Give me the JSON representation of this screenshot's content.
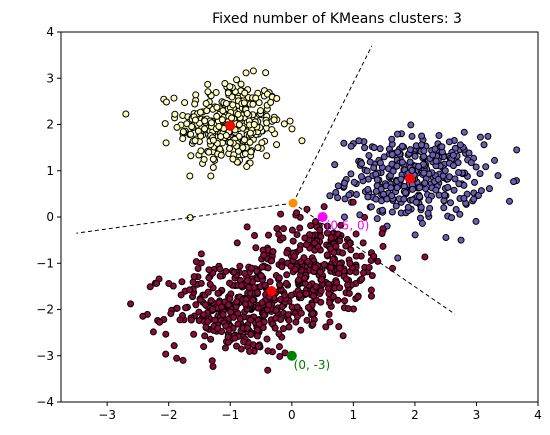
{
  "chart_data": {
    "type": "scatter",
    "title": "Fixed number of KMeans clusters: 3",
    "xlabel": "",
    "ylabel": "",
    "xlim": [
      -3.75,
      4
    ],
    "ylim": [
      -4,
      4
    ],
    "xticks": [
      -3,
      -2,
      -1,
      0,
      1,
      2,
      3,
      4
    ],
    "yticks": [
      -4,
      -3,
      -2,
      -1,
      0,
      1,
      2,
      3,
      4
    ],
    "grid": false,
    "clusters": [
      {
        "label": "cluster-yellow",
        "color": "#ffffbf",
        "center": [
          -1.0,
          2.0
        ],
        "spread": [
          0.42,
          0.48
        ],
        "count": 330
      },
      {
        "label": "cluster-purple",
        "color": "#6a5fb0",
        "center": [
          2.0,
          0.85
        ],
        "spread": [
          0.55,
          0.45
        ],
        "count": 360
      },
      {
        "label": "cluster-red-a",
        "color": "#8b0a3a",
        "center": [
          -0.9,
          -2.0
        ],
        "spread": [
          0.55,
          0.5
        ],
        "count": 330
      },
      {
        "label": "cluster-red-b",
        "color": "#8b0a3a",
        "center": [
          0.4,
          -1.1
        ],
        "spread": [
          0.55,
          0.55
        ],
        "count": 330
      }
    ],
    "centroids": [
      {
        "x": -1.0,
        "y": 1.97,
        "color": "#ff0000"
      },
      {
        "x": 1.92,
        "y": 0.83,
        "color": "#ff0000"
      },
      {
        "x": -0.33,
        "y": -1.6,
        "color": "#ff0000"
      }
    ],
    "boundary_vertex": {
      "x": 0.02,
      "y": 0.3,
      "color": "#ff8c00"
    },
    "boundaries": [
      {
        "from": [
          0.02,
          0.3
        ],
        "to": [
          -3.5,
          -0.35
        ]
      },
      {
        "from": [
          0.02,
          0.3
        ],
        "to": [
          1.3,
          3.7
        ]
      },
      {
        "from": [
          0.02,
          0.3
        ],
        "to": [
          2.65,
          -2.1
        ]
      }
    ],
    "annotations": [
      {
        "x": 0.5,
        "y": 0.0,
        "text": "(0.5, 0)",
        "color": "#ff00ff",
        "offset": [
          0.05,
          -0.18
        ]
      },
      {
        "x": 0.0,
        "y": -3.0,
        "text": "(0, -3)",
        "color": "#008000",
        "offset": [
          0.03,
          -0.2
        ]
      }
    ]
  }
}
